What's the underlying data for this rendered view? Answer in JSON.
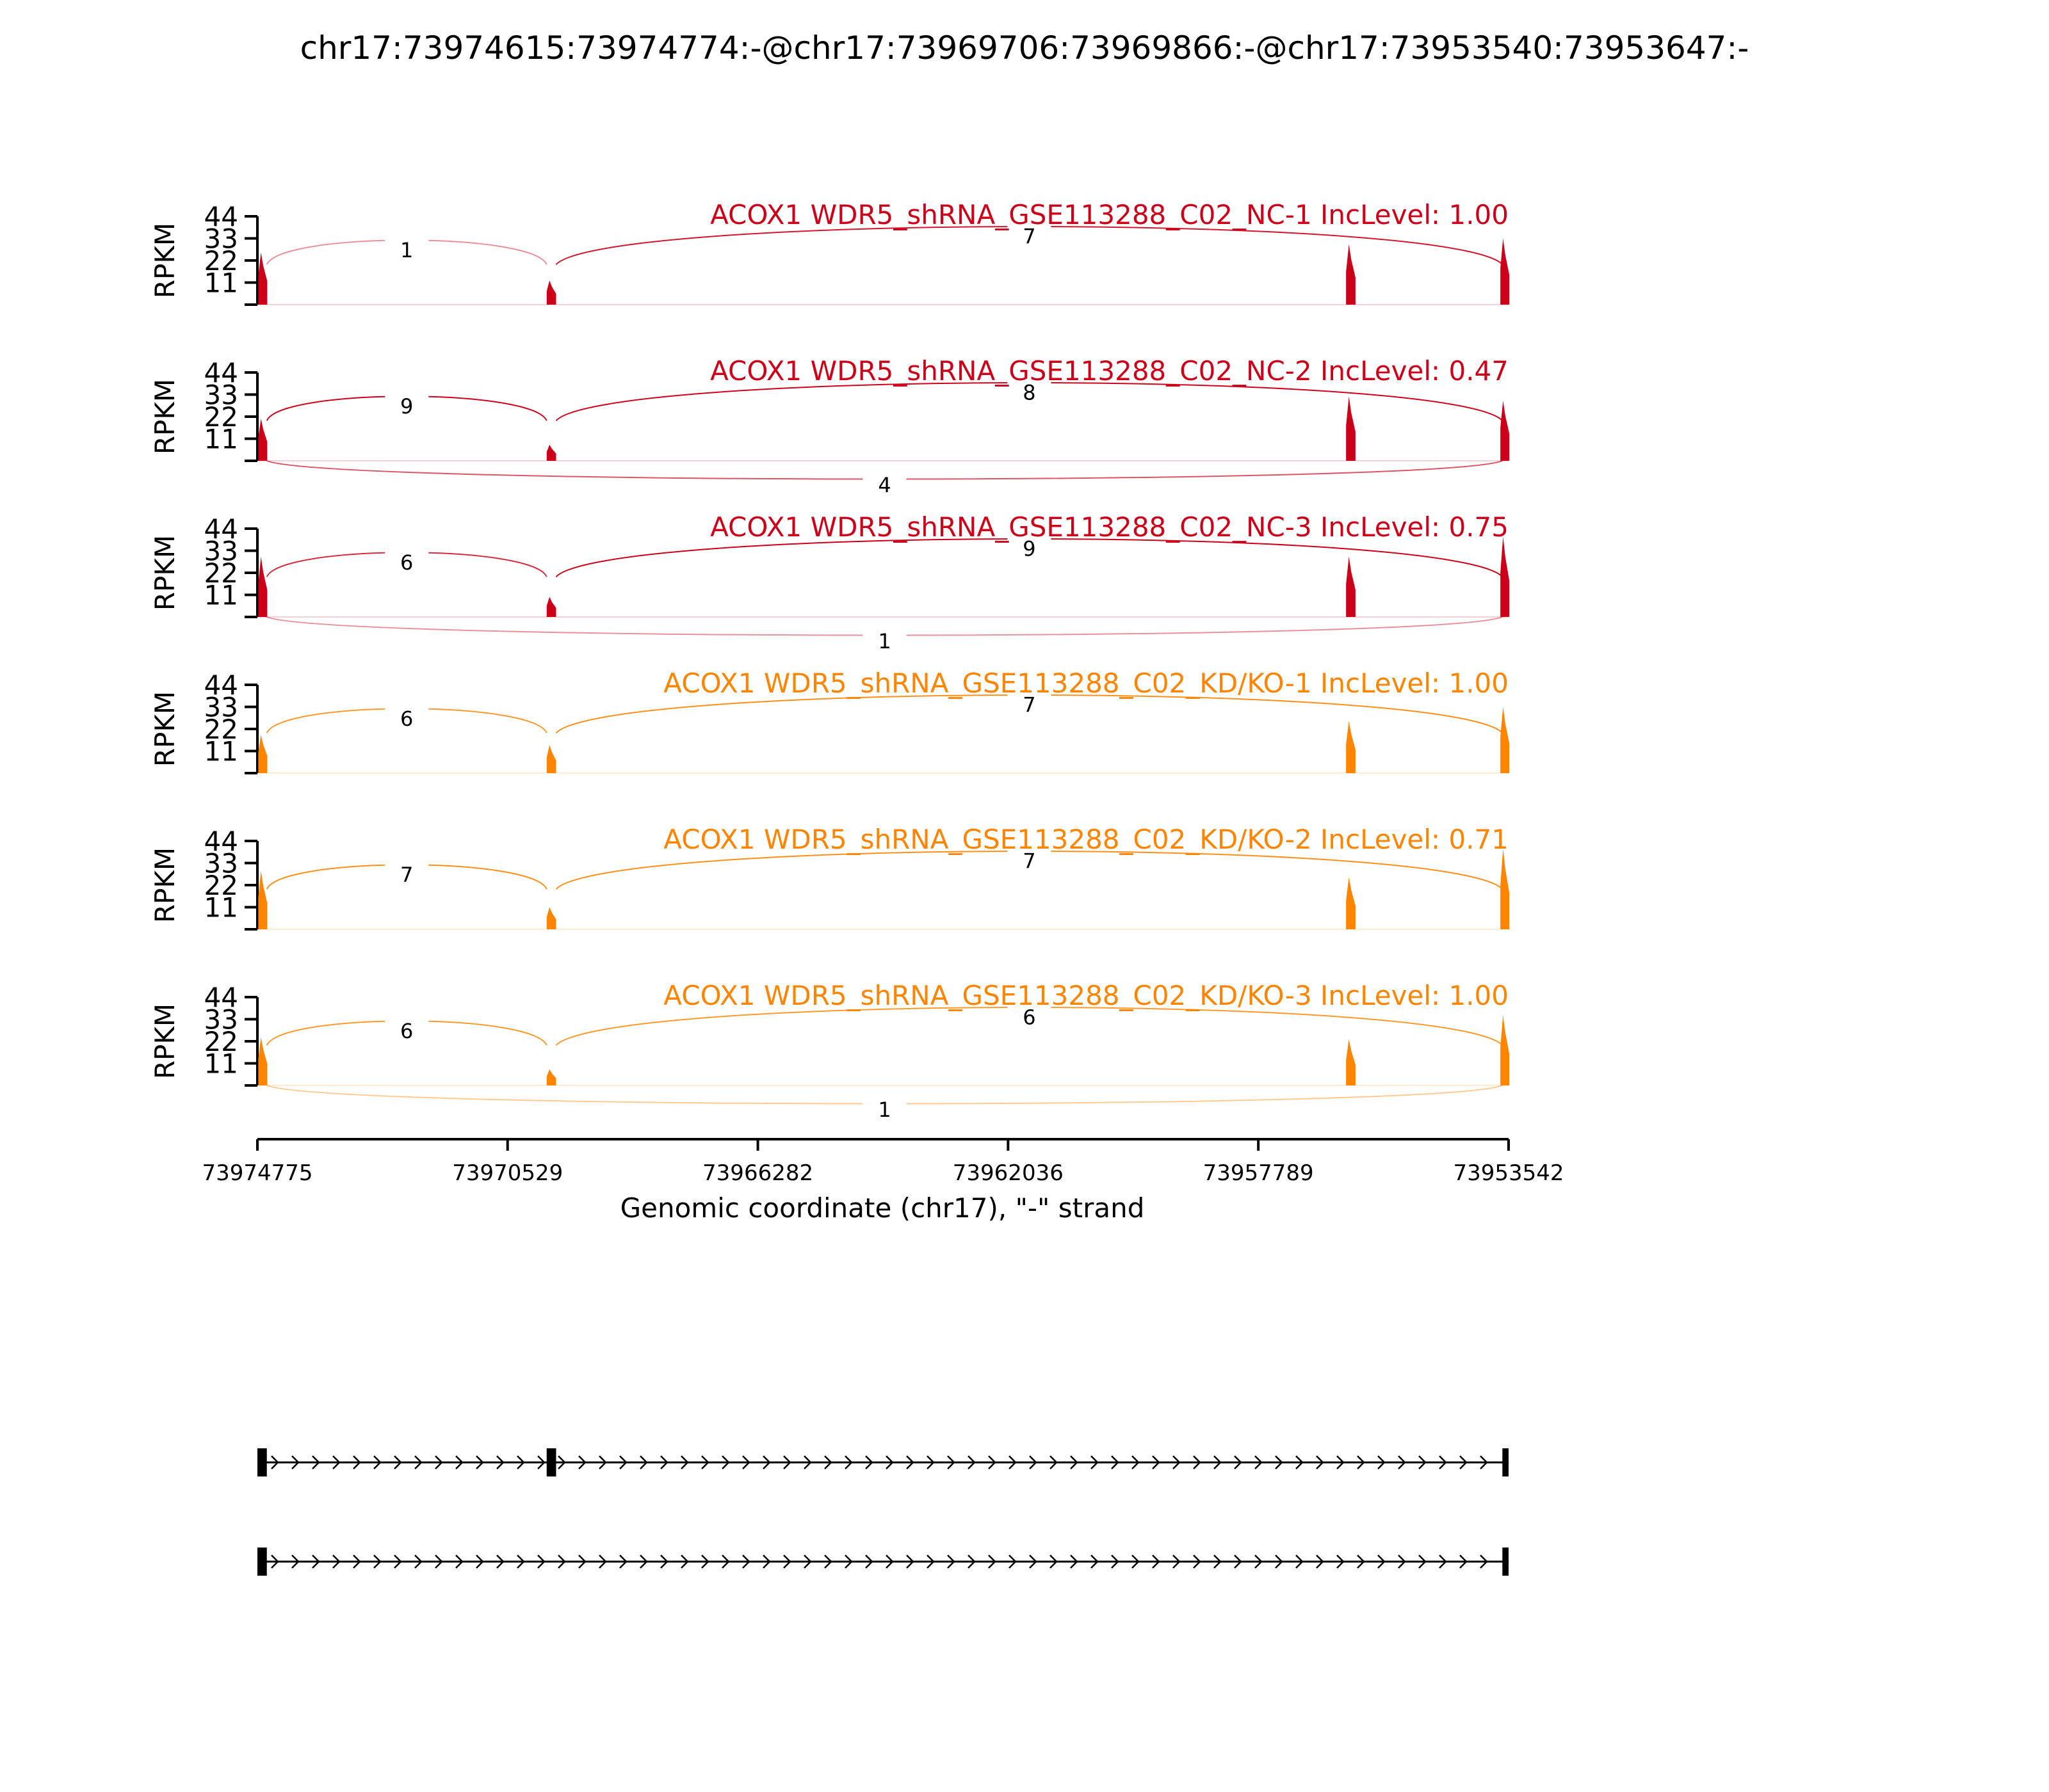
{
  "title": "chr17:73974615:73974774:-@chr17:73969706:73969866:-@chr17:73953540:73953647:-",
  "colors": {
    "nc": "#cc0018",
    "kd": "#ff8400",
    "axis": "#000000"
  },
  "chart_data": {
    "type": "sashimi",
    "title": "chr17:73974615:73974774:-@chr17:73969706:73969866:-@chr17:73953540:73953647:-",
    "ylabel": "RPKM",
    "yticks": [
      11,
      22,
      33,
      44
    ],
    "ylim": [
      0,
      44
    ],
    "xlabel": "Genomic coordinate (chr17), \"-\" strand",
    "xlim": [
      73974775,
      73953542
    ],
    "xticks": [
      73974775,
      73970529,
      73966282,
      73962036,
      73957789,
      73953542
    ],
    "exons_in_coverage": [
      {
        "start": 73974775,
        "end": 73974615
      },
      {
        "start": 73969866,
        "end": 73969706
      },
      {
        "start": 73956300,
        "end": 73956140
      },
      {
        "start": 73953647,
        "end": 73953542
      }
    ],
    "tracks": [
      {
        "label": "ACOX1 WDR5_shRNA_GSE113288_C02_NC-1 IncLevel: 1.00",
        "group": "nc",
        "peaks": [
          26,
          12,
          30,
          33
        ],
        "junctions": [
          {
            "from": 73974615,
            "to": 73969866,
            "count": 1,
            "side": "top"
          },
          {
            "from": 73969706,
            "to": 73953647,
            "count": 7,
            "side": "top"
          }
        ]
      },
      {
        "label": "ACOX1 WDR5_shRNA_GSE113288_C02_NC-2 IncLevel: 0.47",
        "group": "nc",
        "peaks": [
          21,
          8,
          32,
          30
        ],
        "junctions": [
          {
            "from": 73974615,
            "to": 73969866,
            "count": 9,
            "side": "top"
          },
          {
            "from": 73969706,
            "to": 73953647,
            "count": 8,
            "side": "top"
          },
          {
            "from": 73974615,
            "to": 73953647,
            "count": 4,
            "side": "bottom"
          }
        ]
      },
      {
        "label": "ACOX1 WDR5_shRNA_GSE113288_C02_NC-3 IncLevel: 0.75",
        "group": "nc",
        "peaks": [
          30,
          10,
          30,
          40
        ],
        "junctions": [
          {
            "from": 73974615,
            "to": 73969866,
            "count": 6,
            "side": "top"
          },
          {
            "from": 73969706,
            "to": 73953647,
            "count": 9,
            "side": "top"
          },
          {
            "from": 73974615,
            "to": 73953647,
            "count": 1,
            "side": "bottom"
          }
        ]
      },
      {
        "label": "ACOX1 WDR5_shRNA_GSE113288_C02_KD/KO-1 IncLevel: 1.00",
        "group": "kd",
        "peaks": [
          19,
          14,
          26,
          33
        ],
        "junctions": [
          {
            "from": 73974615,
            "to": 73969866,
            "count": 6,
            "side": "top"
          },
          {
            "from": 73969706,
            "to": 73953647,
            "count": 7,
            "side": "top"
          }
        ]
      },
      {
        "label": "ACOX1 WDR5_shRNA_GSE113288_C02_KD/KO-2 IncLevel: 0.71",
        "group": "kd",
        "peaks": [
          29,
          11,
          26,
          40
        ],
        "junctions": [
          {
            "from": 73974615,
            "to": 73969866,
            "count": 7,
            "side": "top"
          },
          {
            "from": 73969706,
            "to": 73953647,
            "count": 7,
            "side": "top"
          }
        ]
      },
      {
        "label": "ACOX1 WDR5_shRNA_GSE113288_C02_KD/KO-3 IncLevel: 1.00",
        "group": "kd",
        "peaks": [
          24,
          8,
          23,
          35
        ],
        "junctions": [
          {
            "from": 73974615,
            "to": 73969866,
            "count": 6,
            "side": "top"
          },
          {
            "from": 73969706,
            "to": 73953647,
            "count": 6,
            "side": "top"
          },
          {
            "from": 73974615,
            "to": 73953647,
            "count": 1,
            "side": "bottom"
          }
        ]
      }
    ],
    "isoforms": [
      {
        "exons": [
          [
            73974775,
            73974615
          ],
          [
            73969866,
            73969706
          ],
          [
            73953647,
            73953540
          ]
        ]
      },
      {
        "exons": [
          [
            73974775,
            73974615
          ],
          [
            73953647,
            73953540
          ]
        ]
      }
    ]
  }
}
